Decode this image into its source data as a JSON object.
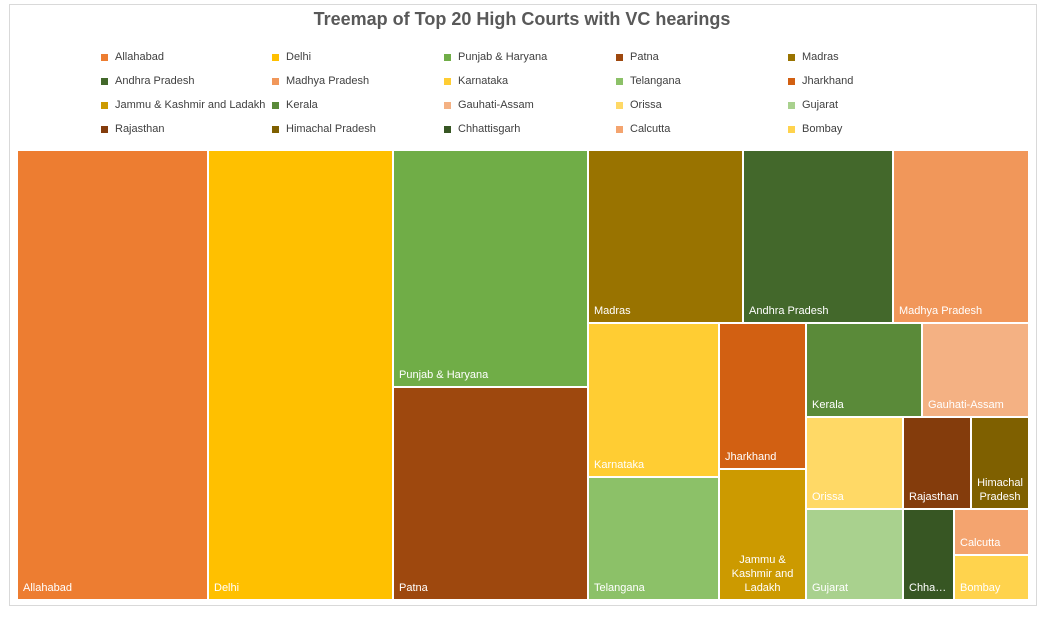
{
  "chart_data": {
    "type": "treemap",
    "title": "Treemap of Top 20 High Courts with VC hearings",
    "legend_placement": "top",
    "series": [
      {
        "name": "Allahabad",
        "color": "#ED7D31"
      },
      {
        "name": "Delhi",
        "color": "#FFC000"
      },
      {
        "name": "Punjab & Haryana",
        "color": "#70AD47"
      },
      {
        "name": "Patna",
        "color": "#9E480E"
      },
      {
        "name": "Madras",
        "color": "#997300"
      },
      {
        "name": "Andhra Pradesh",
        "color": "#43682B"
      },
      {
        "name": "Madhya Pradesh",
        "color": "#F1975A"
      },
      {
        "name": "Karnataka",
        "color": "#FFCD33"
      },
      {
        "name": "Telangana",
        "color": "#8CC168"
      },
      {
        "name": "Jharkhand",
        "color": "#D26012"
      },
      {
        "name": "Jammu & Kashmir and Ladakh",
        "color": "#CC9A00"
      },
      {
        "name": "Kerala",
        "color": "#5A8A39"
      },
      {
        "name": "Gauhati-Assam",
        "color": "#F4B183"
      },
      {
        "name": "Orissa",
        "color": "#FFD966"
      },
      {
        "name": "Gujarat",
        "color": "#A9D18E"
      },
      {
        "name": "Rajasthan",
        "color": "#843C0C"
      },
      {
        "name": "Himachal Pradesh",
        "color": "#7F6000"
      },
      {
        "name": "Chhattisgarh",
        "color": "#375623"
      },
      {
        "name": "Calcutta",
        "color": "#F4A46F"
      },
      {
        "name": "Bombay",
        "color": "#FFD34D"
      }
    ],
    "tiles": [
      {
        "name": "Allahabad",
        "label": "Allahabad",
        "value": 0.1694
      },
      {
        "name": "Delhi",
        "label": "Delhi",
        "value": 0.1619
      },
      {
        "name": "Punjab & Haryana",
        "label": "Punjab & Haryana",
        "value": 0.0995
      },
      {
        "name": "Patna",
        "label": "Patna",
        "value": 0.0902
      },
      {
        "name": "Madras",
        "label": "Madras",
        "value": 0.0572
      },
      {
        "name": "Andhra Pradesh",
        "label": "Andhra Pradesh",
        "value": 0.0561
      },
      {
        "name": "Madhya Pradesh",
        "label": "Madhya Pradesh",
        "value": 0.0502
      },
      {
        "name": "Karnataka",
        "label": "Karnataka",
        "value": 0.0431
      },
      {
        "name": "Telangana",
        "label": "Telangana",
        "value": 0.0351
      },
      {
        "name": "Jharkhand",
        "label": "Jharkhand",
        "value": 0.0284
      },
      {
        "name": "Jammu & Kashmir and Ladakh",
        "label": "Jammu & Kashmir and Ladakh",
        "value": 0.0248
      },
      {
        "name": "Kerala",
        "label": "Kerala",
        "value": 0.0236
      },
      {
        "name": "Gauhati-Assam",
        "label": "Gauhati-Assam",
        "value": 0.0197
      },
      {
        "name": "Orissa",
        "label": "Orissa",
        "value": 0.0185
      },
      {
        "name": "Gujarat",
        "label": "Gujarat",
        "value": 0.0179
      },
      {
        "name": "Rajasthan",
        "label": "Rajasthan",
        "value": 0.013
      },
      {
        "name": "Himachal Pradesh",
        "label": "Himachal Pradesh",
        "value": 0.0122
      },
      {
        "name": "Chhattisgarh",
        "label": "Chha…",
        "value": 0.0092
      },
      {
        "name": "Calcutta",
        "label": "Calcutta",
        "value": 0.0051
      },
      {
        "name": "Bombay",
        "label": "Bombay",
        "value": 0.0046
      }
    ]
  }
}
